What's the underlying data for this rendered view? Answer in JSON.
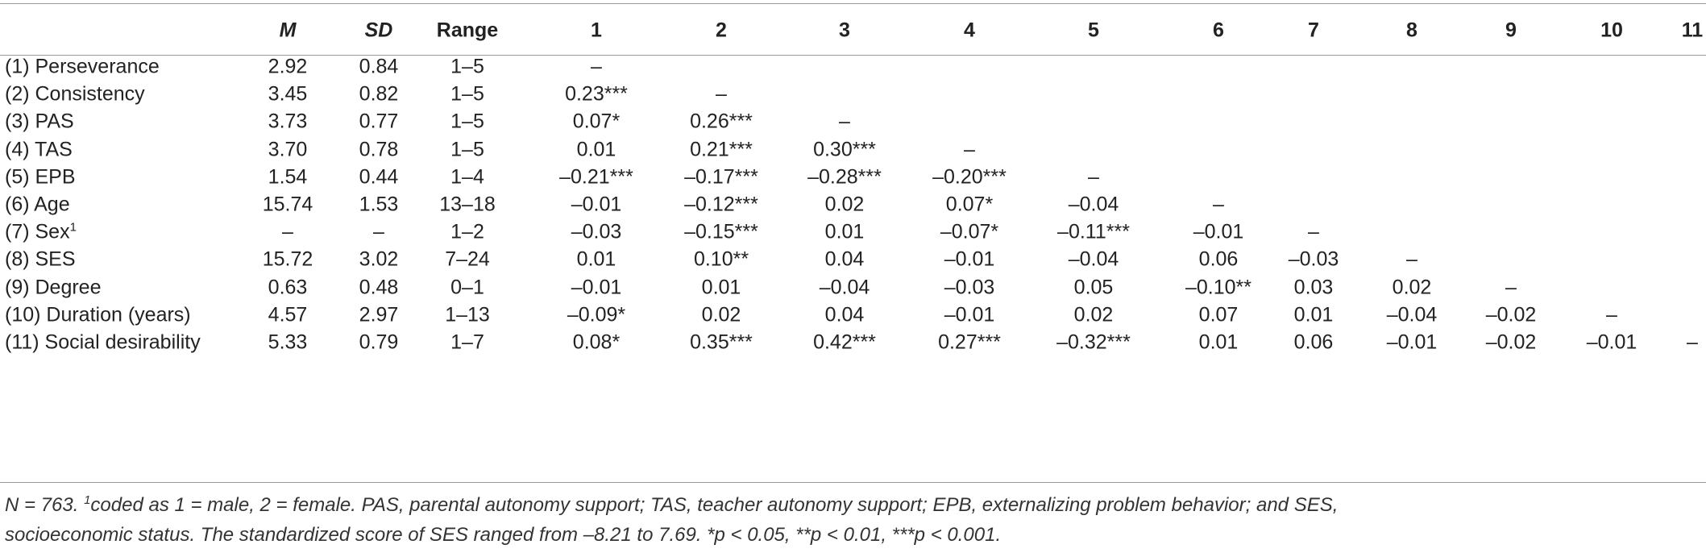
{
  "table": {
    "header": [
      "M",
      "SD",
      "Range",
      "1",
      "2",
      "3",
      "4",
      "5",
      "6",
      "7",
      "8",
      "9",
      "10",
      "11"
    ],
    "rows": [
      {
        "label": "(1) Perseverance",
        "cells": [
          "2.92",
          "0.84",
          "1–5",
          "–"
        ]
      },
      {
        "label": "(2) Consistency",
        "cells": [
          "3.45",
          "0.82",
          "1–5",
          "0.23***",
          "–"
        ]
      },
      {
        "label": "(3) PAS",
        "cells": [
          "3.73",
          "0.77",
          "1–5",
          "0.07*",
          "0.26***",
          "–"
        ]
      },
      {
        "label": "(4) TAS",
        "cells": [
          "3.70",
          "0.78",
          "1–5",
          "0.01",
          "0.21***",
          "0.30***",
          "–"
        ]
      },
      {
        "label": "(5) EPB",
        "cells": [
          "1.54",
          "0.44",
          "1–4",
          "–0.21***",
          "–0.17***",
          "–0.28***",
          "–0.20***",
          "–"
        ]
      },
      {
        "label": "(6) Age",
        "cells": [
          "15.74",
          "1.53",
          "13–18",
          "–0.01",
          "–0.12***",
          "0.02",
          "0.07*",
          "–0.04",
          "–"
        ]
      },
      {
        "label": "(7) Sex",
        "sup": "1",
        "cells": [
          "–",
          "–",
          "1–2",
          "–0.03",
          "–0.15***",
          "0.01",
          "–0.07*",
          "–0.11***",
          "–0.01",
          "–"
        ]
      },
      {
        "label": "(8) SES",
        "cells": [
          "15.72",
          "3.02",
          "7–24",
          "0.01",
          "0.10**",
          "0.04",
          "–0.01",
          "–0.04",
          "0.06",
          "–0.03",
          "–"
        ]
      },
      {
        "label": "(9) Degree",
        "cells": [
          "0.63",
          "0.48",
          "0–1",
          "–0.01",
          "0.01",
          "–0.04",
          "–0.03",
          "0.05",
          "–0.10**",
          "0.03",
          "0.02",
          "–"
        ]
      },
      {
        "label": "(10) Duration (years)",
        "cells": [
          "4.57",
          "2.97",
          "1–13",
          "–0.09*",
          "0.02",
          "0.04",
          "–0.01",
          "0.02",
          "0.07",
          "0.01",
          "–0.04",
          "–0.02",
          "–"
        ]
      },
      {
        "label": "(11) Social desirability",
        "cells": [
          "5.33",
          "0.79",
          "1–7",
          "0.08*",
          "0.35***",
          "0.42***",
          "0.27***",
          "–0.32***",
          "0.01",
          "0.06",
          "–0.01",
          "–0.02",
          "–0.01",
          "–"
        ]
      }
    ]
  },
  "note": {
    "lead": "N = 763. ",
    "sup": "1",
    "line1": "coded as 1 = male, 2 = female. PAS, parental autonomy support; TAS, teacher autonomy support; EPB, externalizing problem behavior; and SES,",
    "line2": "socioeconomic status. The standardized score of SES ranged from –8.21 to 7.69. *p < 0.05, **p < 0.01, ***p < 0.001."
  }
}
